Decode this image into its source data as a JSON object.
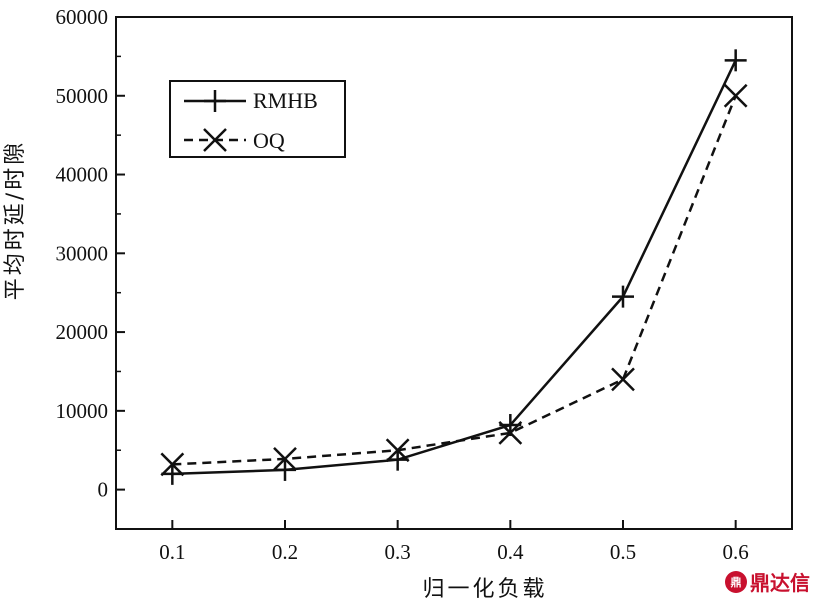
{
  "chart_data": {
    "type": "line",
    "xlabel": "归一化负载",
    "ylabel": "平均时延/时隙",
    "x": [
      0.1,
      0.2,
      0.3,
      0.4,
      0.5,
      0.6
    ],
    "xticks": [
      "0.1",
      "0.2",
      "0.3",
      "0.4",
      "0.5",
      "0.6"
    ],
    "xlim": [
      0.05,
      0.65
    ],
    "ylim": [
      -5000,
      60000
    ],
    "yticks": [
      "0",
      "10000",
      "20000",
      "30000",
      "40000",
      "50000",
      "60000"
    ],
    "legend_position": "top-left",
    "series": [
      {
        "name": "RMHB",
        "style": "solid",
        "marker": "plus",
        "color": "#111111",
        "values": [
          2000,
          2500,
          3800,
          8200,
          24500,
          54500
        ]
      },
      {
        "name": "OQ",
        "style": "dashed",
        "marker": "x",
        "color": "#111111",
        "values": [
          3200,
          3900,
          5000,
          7200,
          14000,
          50000
        ]
      }
    ]
  },
  "watermark": {
    "text": "鼎达信",
    "logo": "鼎"
  }
}
